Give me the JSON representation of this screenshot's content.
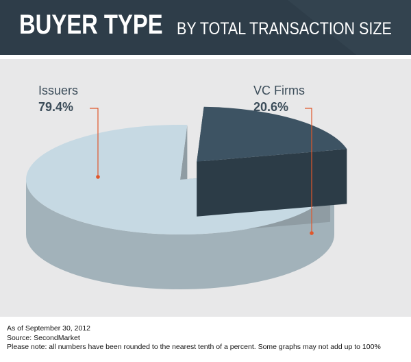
{
  "header": {
    "title": "BUYER TYPE",
    "subtitle": "BY TOTAL TRANSACTION SIZE"
  },
  "chart_data": {
    "type": "pie",
    "title": "BUYER TYPE",
    "subtitle": "BY TOTAL TRANSACTION SIZE",
    "categories": [
      "Issuers",
      "VC Firms"
    ],
    "values": [
      79.4,
      20.6
    ],
    "value_labels": [
      "79.4%",
      "20.6%"
    ],
    "colors": [
      "#c6d9e3",
      "#3d5363"
    ],
    "exploded": "VC Firms",
    "style": "3d"
  },
  "footer": {
    "line1": "As of September 30, 2012",
    "line2": "Source: SecondMarket",
    "line3": "Please note: all numbers have been rounded to the nearest tenth of a percent. Some graphs may not add up to 100%"
  },
  "colors": {
    "header_bg": "#2e3d49",
    "plot_bg": "#e8e8e9",
    "leader": "#e0572b",
    "label_text": "#3c4d5a"
  }
}
